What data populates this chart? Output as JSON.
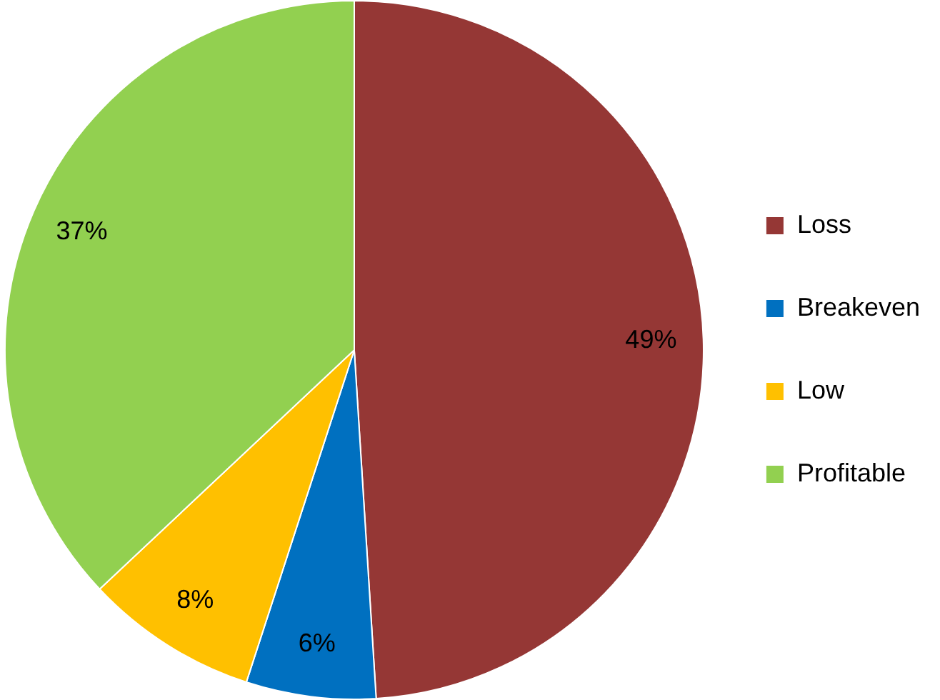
{
  "chart_data": {
    "type": "pie",
    "categories": [
      "Loss",
      "Breakeven",
      "Low",
      "Profitable"
    ],
    "values": [
      49,
      6,
      8,
      37
    ],
    "colors": [
      "#953735",
      "#0070c0",
      "#ffc000",
      "#92d050"
    ],
    "value_labels": [
      "49%",
      "6%",
      "8%",
      "37%"
    ],
    "legend": "right"
  }
}
